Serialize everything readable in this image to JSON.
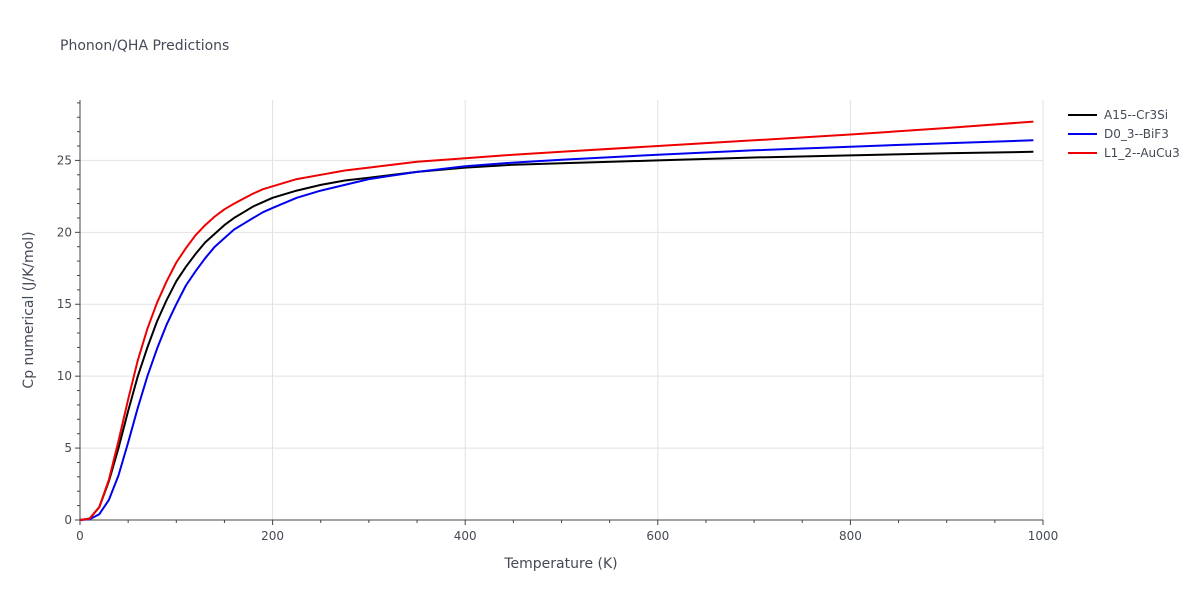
{
  "chart_data": {
    "type": "line",
    "title": "Phonon/QHA Predictions",
    "xlabel": "Temperature (K)",
    "ylabel": "Cp numerical (J/K/mol)",
    "xlim": [
      0,
      1000
    ],
    "ylim": [
      0,
      29.2
    ],
    "xticks": [
      0,
      200,
      400,
      600,
      800,
      1000
    ],
    "yticks": [
      0,
      5,
      10,
      15,
      20,
      25
    ],
    "grid": true,
    "legend_position": "top-right",
    "series": [
      {
        "name": "A15--Cr3Si",
        "color": "#000000",
        "x": [
          0,
          10,
          20,
          30,
          40,
          50,
          60,
          70,
          80,
          90,
          100,
          110,
          120,
          130,
          140,
          150,
          160,
          170,
          180,
          190,
          200,
          225,
          250,
          275,
          300,
          350,
          400,
          450,
          500,
          600,
          700,
          800,
          900,
          990
        ],
        "y": [
          0,
          0.1,
          0.9,
          2.7,
          5.0,
          7.6,
          10.0,
          12.0,
          13.8,
          15.3,
          16.6,
          17.6,
          18.5,
          19.3,
          19.9,
          20.5,
          21.0,
          21.4,
          21.8,
          22.1,
          22.4,
          22.9,
          23.3,
          23.6,
          23.8,
          24.2,
          24.5,
          24.7,
          24.8,
          25.0,
          25.2,
          25.35,
          25.5,
          25.6
        ]
      },
      {
        "name": "D0_3--BiF3",
        "color": "#0000ee",
        "x": [
          0,
          10,
          20,
          30,
          40,
          50,
          60,
          70,
          80,
          90,
          100,
          110,
          120,
          130,
          140,
          150,
          160,
          170,
          180,
          190,
          200,
          225,
          250,
          275,
          300,
          350,
          400,
          450,
          500,
          600,
          700,
          800,
          900,
          990
        ],
        "y": [
          0,
          0.05,
          0.4,
          1.4,
          3.1,
          5.4,
          7.8,
          10.0,
          11.9,
          13.6,
          15.0,
          16.3,
          17.3,
          18.2,
          19.0,
          19.6,
          20.2,
          20.6,
          21.0,
          21.4,
          21.7,
          22.4,
          22.9,
          23.3,
          23.7,
          24.2,
          24.6,
          24.85,
          25.05,
          25.4,
          25.7,
          25.95,
          26.2,
          26.4
        ]
      },
      {
        "name": "L1_2--AuCu3",
        "color": "#ee0000",
        "x": [
          0,
          10,
          20,
          30,
          40,
          50,
          60,
          70,
          80,
          90,
          100,
          110,
          120,
          130,
          140,
          150,
          160,
          170,
          180,
          190,
          200,
          225,
          250,
          275,
          300,
          350,
          400,
          450,
          500,
          600,
          700,
          800,
          900,
          990
        ],
        "y": [
          0,
          0.1,
          0.9,
          2.8,
          5.5,
          8.4,
          11.1,
          13.3,
          15.1,
          16.6,
          17.9,
          18.9,
          19.8,
          20.5,
          21.1,
          21.6,
          22.0,
          22.35,
          22.7,
          23.0,
          23.2,
          23.7,
          24.0,
          24.3,
          24.5,
          24.9,
          25.15,
          25.4,
          25.6,
          26.0,
          26.4,
          26.8,
          27.25,
          27.7
        ]
      }
    ]
  }
}
